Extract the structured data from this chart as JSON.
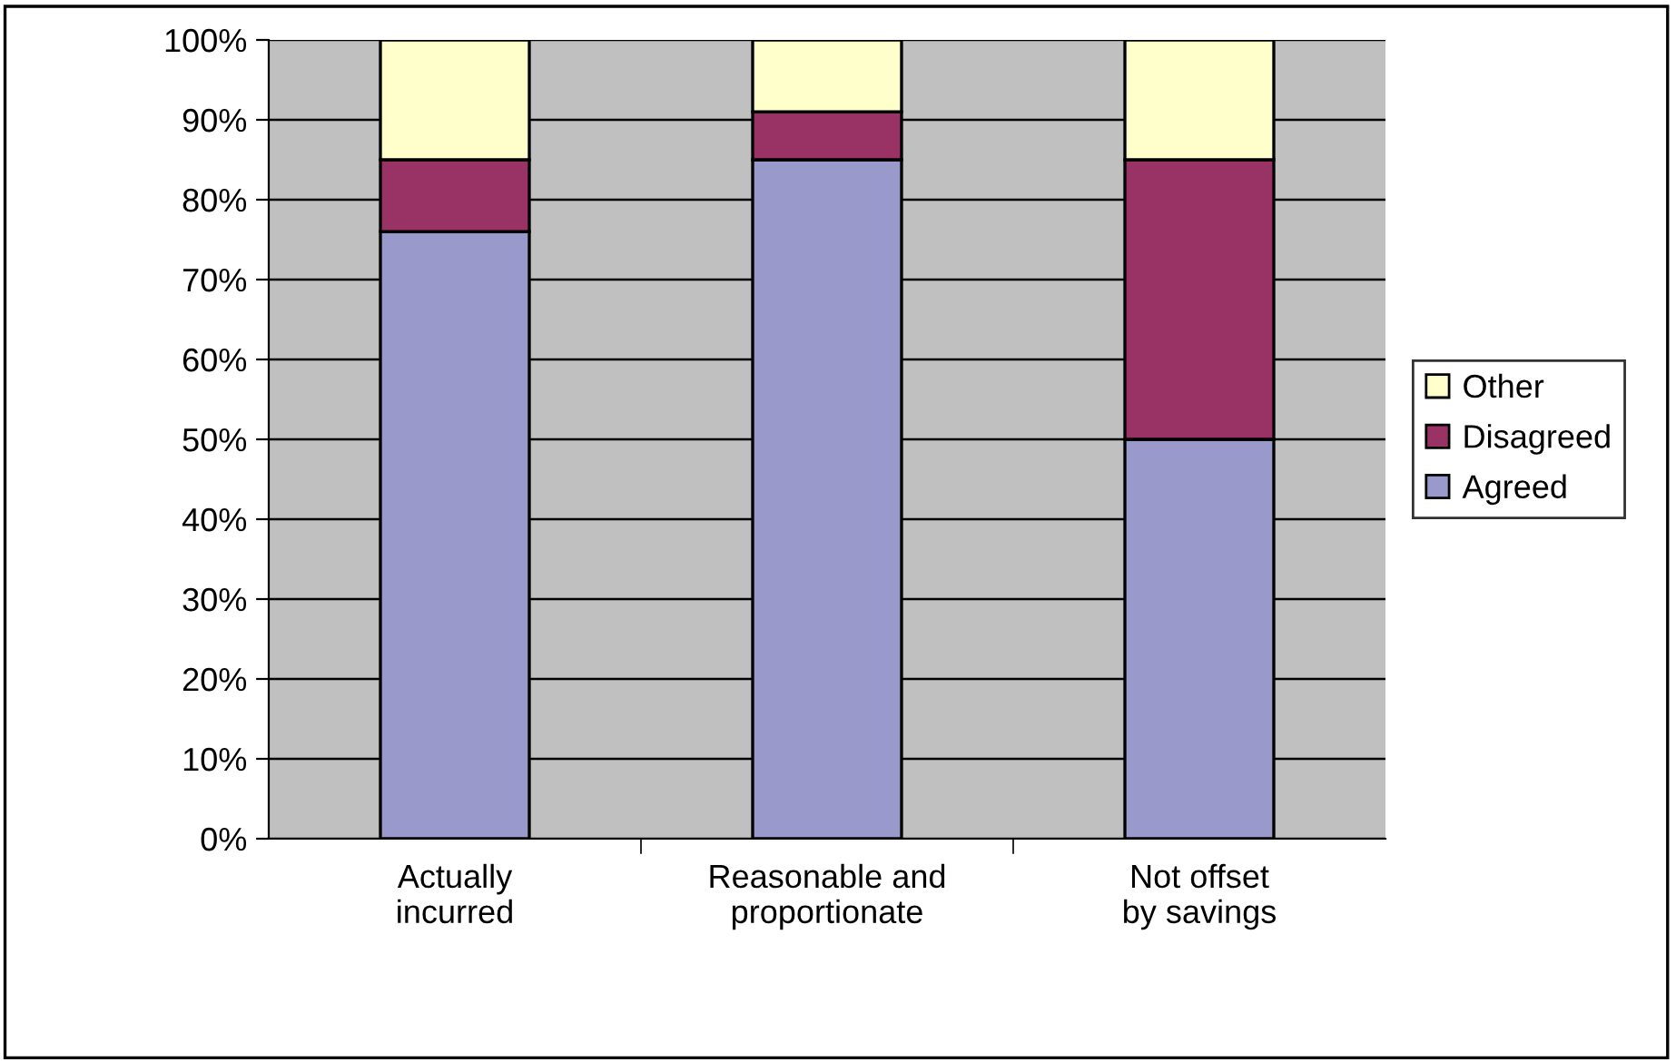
{
  "chart_data": {
    "type": "bar",
    "stacked": true,
    "categories": [
      "Actually incurred",
      "Reasonable and proportionate",
      "Not offset by savings"
    ],
    "series": [
      {
        "name": "Agreed",
        "color": "#9999cc",
        "values": [
          76,
          85,
          50
        ]
      },
      {
        "name": "Disagreed",
        "color": "#993366",
        "values": [
          9,
          6,
          35
        ]
      },
      {
        "name": "Other",
        "color": "#ffffcc",
        "values": [
          15,
          9,
          15
        ]
      }
    ],
    "ylim": [
      0,
      100
    ],
    "yticks": [
      {
        "value": 0,
        "label": "0%"
      },
      {
        "value": 10,
        "label": "10%"
      },
      {
        "value": 20,
        "label": "20%"
      },
      {
        "value": 30,
        "label": "30%"
      },
      {
        "value": 40,
        "label": "40%"
      },
      {
        "value": 50,
        "label": "50%"
      },
      {
        "value": 60,
        "label": "60%"
      },
      {
        "value": 70,
        "label": "70%"
      },
      {
        "value": 80,
        "label": "80%"
      },
      {
        "value": 90,
        "label": "90%"
      },
      {
        "value": 100,
        "label": "100%"
      }
    ],
    "grid": "y",
    "legend": "right"
  }
}
